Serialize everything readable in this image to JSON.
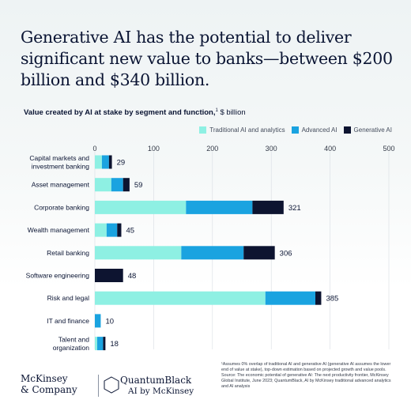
{
  "headline": "Generative AI has the potential to deliver significant new value to banks—between $200 billion and $340 billion.",
  "subtitle": {
    "bold": "Value created by AI at stake by segment and function,",
    "sup": "1",
    "unit": " $ billion"
  },
  "chart_data": {
    "type": "bar",
    "orientation": "horizontal",
    "stacked": true,
    "xlim": [
      0,
      500
    ],
    "x_ticks": [
      "0",
      "100",
      "200",
      "300",
      "400",
      "500"
    ],
    "legend_position": "top-right",
    "grid": true,
    "series": [
      {
        "name": "Traditional AI and analytics",
        "color": "#8ef0e3",
        "values": [
          12,
          28,
          155,
          20,
          147,
          0,
          290,
          0,
          4
        ]
      },
      {
        "name": "Advanced AI",
        "color": "#1aa3e0",
        "values": [
          12,
          20,
          113,
          18,
          106,
          0,
          85,
          10,
          10
        ]
      },
      {
        "name": "Generative  AI",
        "color": "#0d1430",
        "values": [
          5,
          11,
          53,
          7,
          53,
          48,
          10,
          0,
          4
        ]
      }
    ],
    "categories": [
      [
        "Capital markets and",
        "investment banking"
      ],
      [
        "Asset management"
      ],
      [
        "Corporate banking"
      ],
      [
        "Wealth management"
      ],
      [
        "Retail banking"
      ],
      [
        "Software engineering"
      ],
      [
        "Risk and legal"
      ],
      [
        "IT and finance"
      ],
      [
        "Talent and",
        "organization"
      ]
    ],
    "totals": [
      "29",
      "59",
      "321",
      "45",
      "306",
      "48",
      "385",
      "10",
      "18"
    ]
  },
  "footnote": [
    "¹Assumes 0% overlap of traditional AI and generative AI (generative AI assumes the lower end of value at stake), top-down estimation based on projected growth and value pools.",
    "Source: The economic potential of generative AI: The next productivity frontier, McKinsey Global Institute, June 2023; QuantumBlack, AI by McKinsey traditional advanced analytics and AI analysis"
  ],
  "logos": {
    "mckinsey_line1": "McKinsey",
    "mckinsey_line2": "& Company",
    "qb_line1": "QuantumBlack",
    "qb_line2": "AI by McKinsey",
    "qb_icon": "hexagon-icon"
  }
}
